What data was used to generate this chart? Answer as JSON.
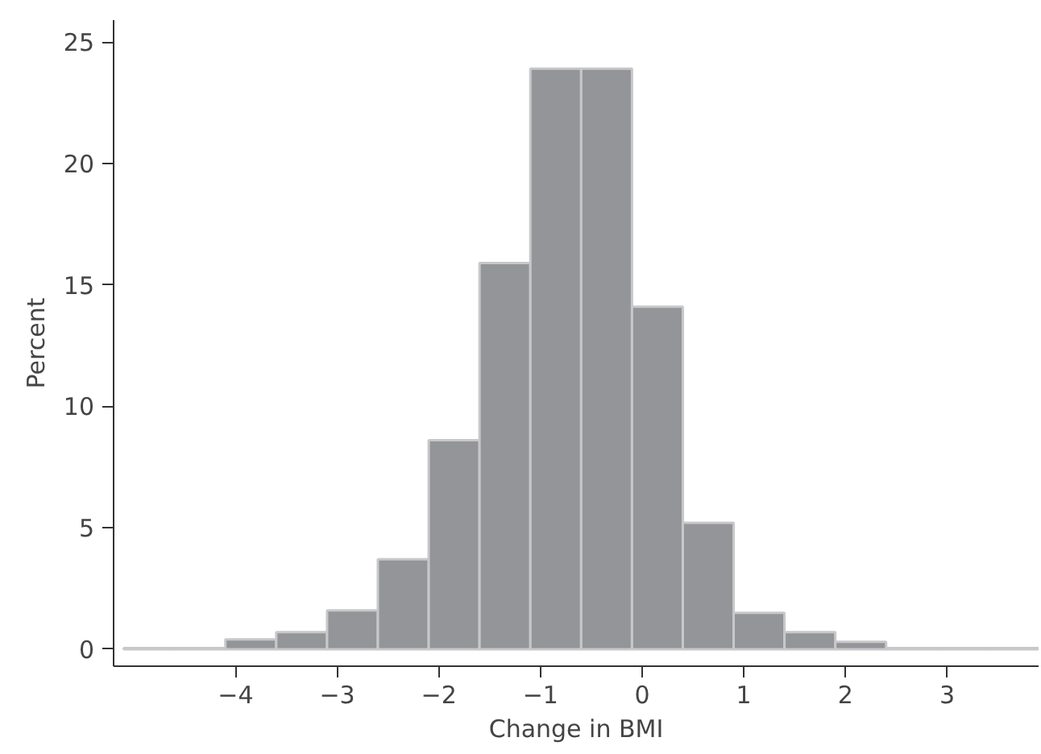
{
  "chart_data": {
    "type": "histogram",
    "xlabel": "Change in BMI",
    "ylabel": "Percent",
    "bins": [
      -5.1,
      -4.6,
      -4.1,
      -3.6,
      -3.1,
      -2.6,
      -2.1,
      -1.6,
      -1.1,
      -0.6,
      -0.1,
      0.4,
      0.9,
      1.4,
      1.9,
      2.4,
      2.9,
      3.4,
      3.9
    ],
    "values": [
      0.05,
      0.05,
      0.4,
      0.7,
      1.6,
      3.7,
      8.6,
      15.9,
      23.9,
      23.9,
      14.1,
      5.2,
      1.5,
      0.7,
      0.3,
      0.05,
      0.05,
      0.05
    ],
    "color": "#939598",
    "xlim": [
      -5.2,
      3.9
    ],
    "xticks": [
      {
        "value": -4,
        "label": "−4"
      },
      {
        "value": -3,
        "label": "−3"
      },
      {
        "value": -2,
        "label": "−2"
      },
      {
        "value": -1,
        "label": "−1"
      },
      0,
      1,
      2,
      3
    ],
    "ylim": [
      -0.7,
      25.9
    ],
    "yticks": [
      0,
      5,
      10,
      15,
      20,
      25
    ],
    "grid": false
  }
}
